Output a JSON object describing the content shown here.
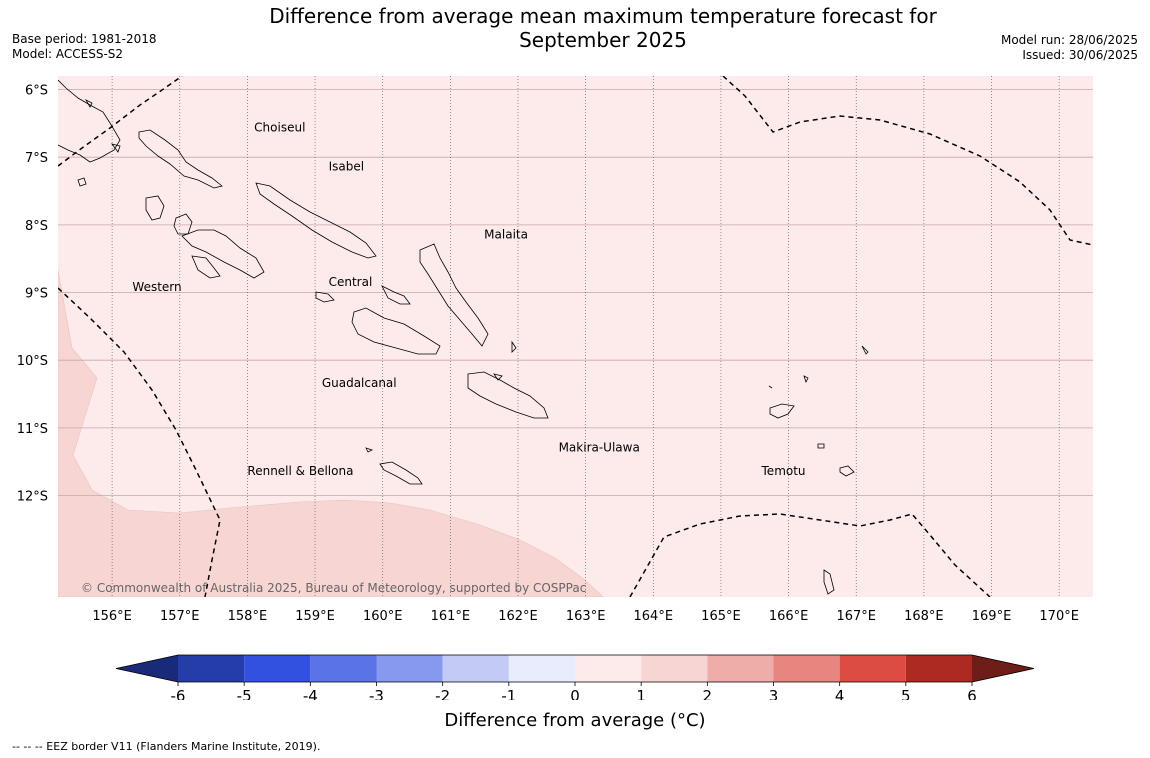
{
  "title_line1": "Difference from average mean maximum temperature forecast for",
  "title_line2": "September 2025",
  "meta_left": [
    "Base period: 1981-2018",
    "Model: ACCESS-S2"
  ],
  "meta_right": [
    "Model run: 28/06/2025",
    "Issued: 30/06/2025"
  ],
  "lat_labels": [
    "6°S",
    "7°S",
    "8°S",
    "9°S",
    "10°S",
    "11°S",
    "12°S"
  ],
  "lon_labels": [
    "156°E",
    "157°E",
    "158°E",
    "159°E",
    "160°E",
    "161°E",
    "162°E",
    "163°E",
    "164°E",
    "165°E",
    "166°E",
    "167°E",
    "168°E",
    "169°E",
    "170°E"
  ],
  "places": [
    {
      "name": "Choiseul",
      "lon": 158.1,
      "lat": -6.62
    },
    {
      "name": "Isabel",
      "lon": 159.2,
      "lat": -7.2
    },
    {
      "name": "Malaita",
      "lon": 161.5,
      "lat": -8.2
    },
    {
      "name": "Central",
      "lon": 159.2,
      "lat": -8.9
    },
    {
      "name": "Western",
      "lon": 156.3,
      "lat": -8.98
    },
    {
      "name": "Guadalcanal",
      "lon": 159.1,
      "lat": -10.4
    },
    {
      "name": "Makira-Ulawa",
      "lon": 162.6,
      "lat": -11.35
    },
    {
      "name": "Rennell & Bellona",
      "lon": 158.0,
      "lat": -11.7
    },
    {
      "name": "Temotu",
      "lon": 165.6,
      "lat": -11.7
    }
  ],
  "copyright": "© Commonwealth of Australia 2025, Bureau of Meteorology, supported by COSPPac",
  "colorbar": {
    "ticks": [
      "-6",
      "-5",
      "-4",
      "-3",
      "-2",
      "-1",
      "0",
      "1",
      "2",
      "3",
      "4",
      "5",
      "6"
    ],
    "colors": [
      "#253da8",
      "#3351e0",
      "#5a74e8",
      "#8799ee",
      "#c3cbf5",
      "#e8ecfc",
      "#fcebea",
      "#f6d5d3",
      "#eeada9",
      "#e6867f",
      "#dc4c42",
      "#ad2a22"
    ],
    "under_color": "#1a2a7a",
    "over_color": "#6e1e18",
    "label": "Difference from average (°C)"
  },
  "footnote": "-- -- -- EEZ border V11 (Flanders Marine Institute, 2019).",
  "map": {
    "lon_range": [
      155.2,
      170.5
    ],
    "lat_range": [
      -13.5,
      -5.8
    ],
    "background_color": "#fcebea",
    "warm_region_color": "#f6d5d3"
  }
}
